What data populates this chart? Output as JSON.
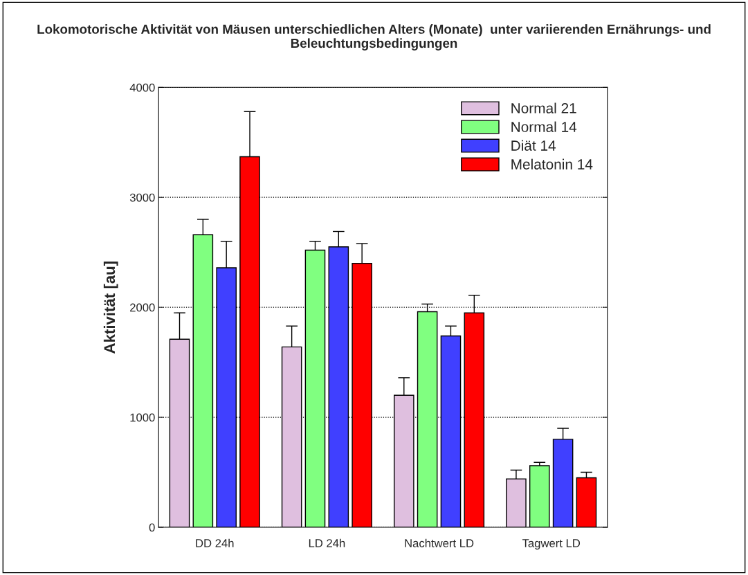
{
  "chart_data": {
    "type": "bar",
    "title": "Lokomotorische Aktivität von Mäusen unterschiedlichen Alters (Monate)  unter variierenden Ernährungs- und Beleuchtungsbedingungen",
    "ylabel": "Aktivität [au]",
    "categories": [
      "DD 24h",
      "LD 24h",
      "Nachtwert LD",
      "Tagwert LD"
    ],
    "series": [
      {
        "name": "Normal 21",
        "color": "#dfbfdf",
        "values": [
          1710,
          1640,
          1200,
          440
        ],
        "errors": [
          240,
          190,
          160,
          80
        ]
      },
      {
        "name": "Normal 14",
        "color": "#80ff80",
        "values": [
          2660,
          2520,
          1960,
          560
        ],
        "errors": [
          140,
          80,
          70,
          30
        ]
      },
      {
        "name": "Diät 14",
        "color": "#4040ff",
        "values": [
          2360,
          2550,
          1740,
          800
        ],
        "errors": [
          240,
          140,
          90,
          100
        ]
      },
      {
        "name": "Melatonin 14",
        "color": "#ff0000",
        "values": [
          3370,
          2400,
          1950,
          450
        ],
        "errors": [
          410,
          180,
          160,
          50
        ]
      }
    ],
    "ylim": [
      0,
      4000
    ],
    "yticks": [
      0,
      1000,
      2000,
      3000,
      4000
    ],
    "grid": "y",
    "legend": "top right"
  }
}
